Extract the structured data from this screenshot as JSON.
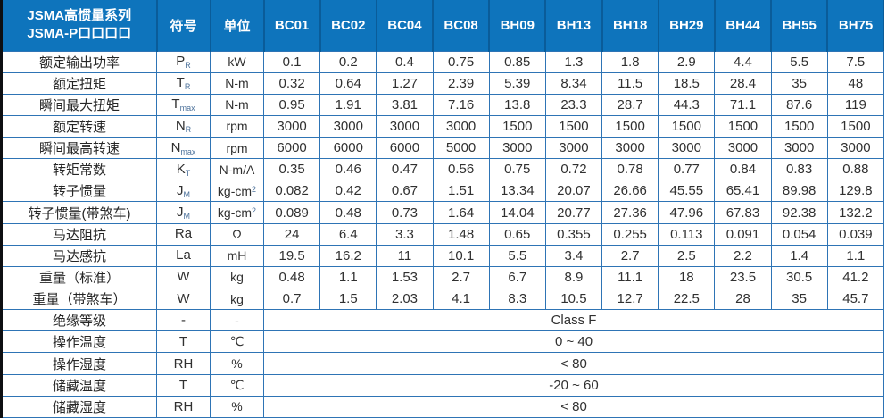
{
  "table": {
    "title": [
      "JSMA高惯量系列",
      "JSMA-P口口口口"
    ],
    "col_symbol": "符号",
    "col_unit": "单位",
    "models": [
      "BC01",
      "BC02",
      "BC04",
      "BC08",
      "BH09",
      "BH13",
      "BH18",
      "BH29",
      "BH44",
      "BH55",
      "BH75"
    ],
    "rows": [
      {
        "label": "额定输出功率",
        "symbol": "P",
        "sub": "R",
        "unit": "kW",
        "sup": "",
        "values": [
          "0.1",
          "0.2",
          "0.4",
          "0.75",
          "0.85",
          "1.3",
          "1.8",
          "2.9",
          "4.4",
          "5.5",
          "7.5"
        ]
      },
      {
        "label": "额定扭矩",
        "symbol": "T",
        "sub": "R",
        "unit": "N-m",
        "sup": "",
        "values": [
          "0.32",
          "0.64",
          "1.27",
          "2.39",
          "5.39",
          "8.34",
          "11.5",
          "18.5",
          "28.4",
          "35",
          "48"
        ]
      },
      {
        "label": "瞬间最大扭矩",
        "symbol": "T",
        "sub": "max",
        "unit": "N-m",
        "sup": "",
        "values": [
          "0.95",
          "1.91",
          "3.81",
          "7.16",
          "13.8",
          "23.3",
          "28.7",
          "44.3",
          "71.1",
          "87.6",
          "119"
        ]
      },
      {
        "label": "额定转速",
        "symbol": "N",
        "sub": "R",
        "unit": "rpm",
        "sup": "",
        "values": [
          "3000",
          "3000",
          "3000",
          "3000",
          "1500",
          "1500",
          "1500",
          "1500",
          "1500",
          "1500",
          "1500"
        ]
      },
      {
        "label": "瞬间最高转速",
        "symbol": "N",
        "sub": "max",
        "unit": "rpm",
        "sup": "",
        "values": [
          "6000",
          "6000",
          "6000",
          "5000",
          "3000",
          "3000",
          "3000",
          "3000",
          "3000",
          "3000",
          "3000"
        ]
      },
      {
        "label": "转矩常数",
        "symbol": "K",
        "sub": "T",
        "unit": "N-m/A",
        "sup": "",
        "values": [
          "0.35",
          "0.46",
          "0.47",
          "0.56",
          "0.75",
          "0.72",
          "0.78",
          "0.77",
          "0.84",
          "0.83",
          "0.88"
        ]
      },
      {
        "label": "转子惯量",
        "symbol": "J",
        "sub": "M",
        "unit": "kg-cm",
        "sup": "2",
        "values": [
          "0.082",
          "0.42",
          "0.67",
          "1.51",
          "13.34",
          "20.07",
          "26.66",
          "45.55",
          "65.41",
          "89.98",
          "129.8"
        ]
      },
      {
        "label": "转子惯量(带煞车)",
        "symbol": "J",
        "sub": "M",
        "unit": "kg-cm",
        "sup": "2",
        "values": [
          "0.089",
          "0.48",
          "0.73",
          "1.64",
          "14.04",
          "20.77",
          "27.36",
          "47.96",
          "67.83",
          "92.38",
          "132.2"
        ]
      },
      {
        "label": "马达阻抗",
        "symbol": "Ra",
        "sub": "",
        "unit": "Ω",
        "sup": "",
        "values": [
          "24",
          "6.4",
          "3.3",
          "1.48",
          "0.65",
          "0.355",
          "0.255",
          "0.113",
          "0.091",
          "0.054",
          "0.039"
        ]
      },
      {
        "label": "马达感抗",
        "symbol": "La",
        "sub": "",
        "unit": "mH",
        "sup": "",
        "values": [
          "19.5",
          "16.2",
          "11",
          "10.1",
          "5.5",
          "3.4",
          "2.7",
          "2.5",
          "2.2",
          "1.4",
          "1.1"
        ]
      },
      {
        "label": "重量（标准）",
        "symbol": "W",
        "sub": "",
        "unit": "kg",
        "sup": "",
        "values": [
          "0.48",
          "1.1",
          "1.53",
          "2.7",
          "6.7",
          "8.9",
          "11.1",
          "18",
          "23.5",
          "30.5",
          "41.2"
        ]
      },
      {
        "label": "重量（带煞车）",
        "symbol": "W",
        "sub": "",
        "unit": "kg",
        "sup": "",
        "values": [
          "0.7",
          "1.5",
          "2.03",
          "4.1",
          "8.3",
          "10.5",
          "12.7",
          "22.5",
          "28",
          "35",
          "45.7"
        ]
      }
    ],
    "span_rows": [
      {
        "label": "绝缘等级",
        "symbol": "-",
        "unit": "-",
        "value": "Class F"
      },
      {
        "label": "操作温度",
        "symbol": "T",
        "unit": "℃",
        "value": "0 ~ 40"
      },
      {
        "label": "操作湿度",
        "symbol": "RH",
        "unit": "%",
        "value": "< 80"
      },
      {
        "label": "储藏温度",
        "symbol": "T",
        "unit": "℃",
        "value": "-20 ~ 60"
      },
      {
        "label": "储藏湿度",
        "symbol": "RH",
        "unit": "%",
        "value": "< 80"
      }
    ],
    "colors": {
      "header_bg": "#0e74bc",
      "header_sep": "#0a5c99",
      "border": "#2e74b5",
      "body_text": "#303030",
      "sub_text": "#4d729b",
      "outer_left": "#0d0f12"
    }
  }
}
